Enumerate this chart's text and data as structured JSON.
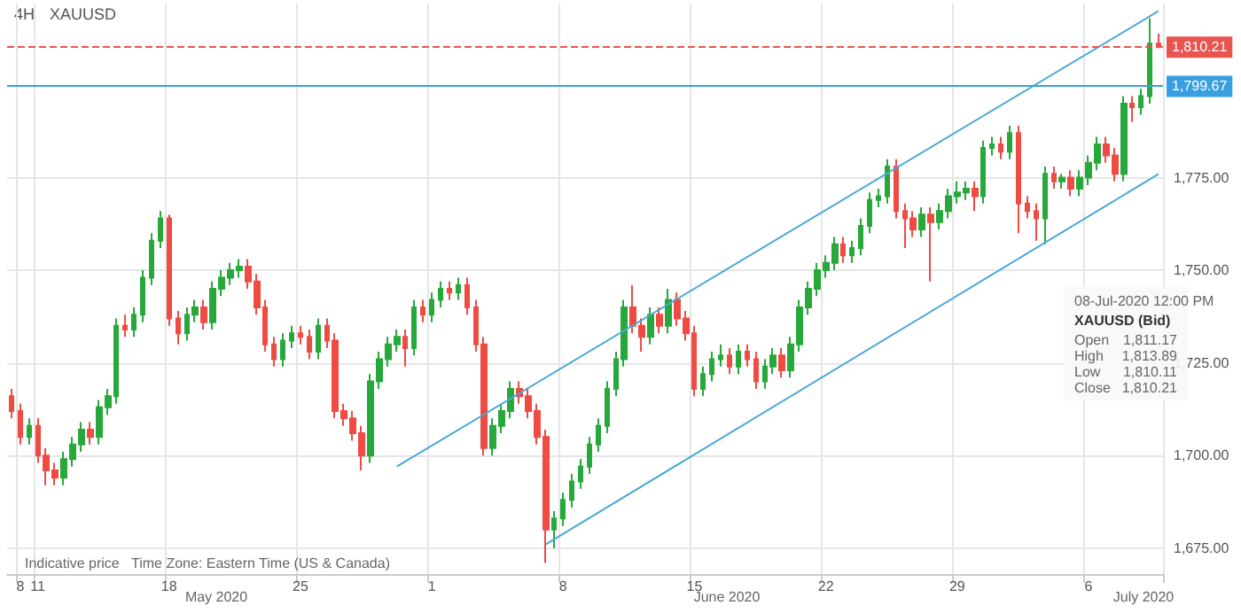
{
  "chart_data": {
    "type": "candlestick",
    "title": "4H",
    "subtitle": "XAUUSD",
    "categories": [
      null,
      "8",
      null,
      "11",
      null,
      null,
      null,
      null,
      null,
      null,
      null,
      null,
      null,
      null,
      null,
      null,
      null,
      null,
      "18",
      null,
      null,
      null,
      null,
      null,
      null,
      null,
      null,
      null,
      null,
      null,
      null,
      null,
      null,
      "25",
      null,
      null,
      null,
      null,
      null,
      null,
      null,
      null,
      null,
      null,
      null,
      null,
      null,
      null,
      "1",
      null,
      null,
      null,
      null,
      null,
      null,
      null,
      null,
      null,
      null,
      null,
      null,
      null,
      null,
      "8",
      null,
      null,
      null,
      null,
      null,
      null,
      null,
      null,
      null,
      null,
      null,
      null,
      null,
      null,
      "15",
      null,
      null,
      null,
      null,
      null,
      null,
      null,
      null,
      null,
      null,
      null,
      null,
      null,
      null,
      "22",
      null,
      null,
      null,
      null,
      null,
      null,
      null,
      null,
      null,
      null,
      null,
      null,
      null,
      null,
      "29",
      null,
      null,
      null,
      null,
      null,
      null,
      null,
      null,
      null,
      null,
      null,
      null,
      null,
      null,
      "6",
      null,
      null,
      null,
      null,
      null,
      null,
      null,
      null
    ],
    "series": [
      {
        "ohlc": [
          [
            1716,
            1718,
            1710,
            1712
          ],
          [
            1712,
            1714,
            1703,
            1705
          ],
          [
            1705,
            1710,
            1703,
            1708
          ],
          [
            1708,
            1710,
            1698,
            1700
          ],
          [
            1700,
            1702,
            1692,
            1696
          ],
          [
            1696,
            1698,
            1692,
            1694
          ],
          [
            1694,
            1701,
            1692,
            1699
          ],
          [
            1699,
            1705,
            1697,
            1703
          ],
          [
            1703,
            1709,
            1701,
            1707
          ],
          [
            1707,
            1709,
            1703,
            1705
          ],
          [
            1705,
            1715,
            1703,
            1713
          ],
          [
            1713,
            1718,
            1711,
            1716
          ],
          [
            1716,
            1737,
            1714,
            1735
          ],
          [
            1735,
            1738,
            1732,
            1734
          ],
          [
            1734,
            1740,
            1732,
            1738
          ],
          [
            1738,
            1750,
            1736,
            1748
          ],
          [
            1748,
            1760,
            1746,
            1758
          ],
          [
            1758,
            1766,
            1756,
            1764
          ],
          [
            1764,
            1765,
            1735,
            1737
          ],
          [
            1737,
            1739,
            1730,
            1733
          ],
          [
            1733,
            1740,
            1731,
            1738
          ],
          [
            1738,
            1742,
            1736,
            1740
          ],
          [
            1740,
            1742,
            1734,
            1736
          ],
          [
            1736,
            1747,
            1734,
            1745
          ],
          [
            1745,
            1750,
            1743,
            1748
          ],
          [
            1748,
            1752,
            1746,
            1750
          ],
          [
            1750,
            1753,
            1748,
            1751
          ],
          [
            1751,
            1753,
            1745,
            1747
          ],
          [
            1747,
            1749,
            1738,
            1740
          ],
          [
            1740,
            1742,
            1728,
            1730
          ],
          [
            1730,
            1732,
            1724,
            1726
          ],
          [
            1726,
            1733,
            1724,
            1731
          ],
          [
            1731,
            1735,
            1729,
            1733
          ],
          [
            1733,
            1735,
            1730,
            1732
          ],
          [
            1732,
            1734,
            1726,
            1728
          ],
          [
            1728,
            1737,
            1726,
            1735
          ],
          [
            1735,
            1737,
            1729,
            1731
          ],
          [
            1731,
            1733,
            1710,
            1712
          ],
          [
            1712,
            1714,
            1708,
            1710
          ],
          [
            1710,
            1712,
            1704,
            1706
          ],
          [
            1706,
            1708,
            1696,
            1700
          ],
          [
            1700,
            1722,
            1698,
            1720
          ],
          [
            1720,
            1728,
            1718,
            1726
          ],
          [
            1726,
            1732,
            1724,
            1730
          ],
          [
            1730,
            1734,
            1728,
            1732
          ],
          [
            1732,
            1734,
            1724,
            1729
          ],
          [
            1729,
            1742,
            1727,
            1740
          ],
          [
            1740,
            1742,
            1736,
            1738
          ],
          [
            1738,
            1744,
            1736,
            1742
          ],
          [
            1742,
            1747,
            1740,
            1745
          ],
          [
            1745,
            1747,
            1742,
            1744
          ],
          [
            1744,
            1748,
            1742,
            1746
          ],
          [
            1746,
            1748,
            1738,
            1740
          ],
          [
            1740,
            1742,
            1728,
            1730
          ],
          [
            1730,
            1732,
            1700,
            1702
          ],
          [
            1702,
            1710,
            1700,
            1708
          ],
          [
            1708,
            1714,
            1706,
            1712
          ],
          [
            1712,
            1720,
            1710,
            1718
          ],
          [
            1718,
            1720,
            1714,
            1716
          ],
          [
            1716,
            1718,
            1710,
            1712
          ],
          [
            1712,
            1714,
            1703,
            1705
          ],
          [
            1705,
            1707,
            1671,
            1680
          ],
          [
            1680,
            1685,
            1675,
            1683
          ],
          [
            1683,
            1690,
            1681,
            1688
          ],
          [
            1688,
            1695,
            1686,
            1693
          ],
          [
            1693,
            1699,
            1691,
            1697
          ],
          [
            1697,
            1705,
            1695,
            1703
          ],
          [
            1703,
            1710,
            1701,
            1708
          ],
          [
            1708,
            1720,
            1706,
            1718
          ],
          [
            1718,
            1728,
            1716,
            1726
          ],
          [
            1726,
            1742,
            1724,
            1740
          ],
          [
            1740,
            1746,
            1733,
            1735
          ],
          [
            1735,
            1737,
            1728,
            1732
          ],
          [
            1732,
            1740,
            1730,
            1738
          ],
          [
            1738,
            1740,
            1733,
            1735
          ],
          [
            1735,
            1745,
            1733,
            1742
          ],
          [
            1742,
            1744,
            1735,
            1737
          ],
          [
            1737,
            1739,
            1731,
            1733
          ],
          [
            1733,
            1735,
            1716,
            1718
          ],
          [
            1718,
            1724,
            1716,
            1722
          ],
          [
            1722,
            1728,
            1720,
            1726
          ],
          [
            1726,
            1730,
            1724,
            1727
          ],
          [
            1727,
            1729,
            1722,
            1724
          ],
          [
            1724,
            1730,
            1722,
            1728
          ],
          [
            1728,
            1730,
            1724,
            1726
          ],
          [
            1726,
            1728,
            1718,
            1720
          ],
          [
            1720,
            1726,
            1718,
            1724
          ],
          [
            1724,
            1729,
            1722,
            1727
          ],
          [
            1727,
            1729,
            1721,
            1723
          ],
          [
            1723,
            1732,
            1721,
            1730
          ],
          [
            1730,
            1742,
            1728,
            1740
          ],
          [
            1740,
            1747,
            1738,
            1745
          ],
          [
            1745,
            1752,
            1743,
            1750
          ],
          [
            1750,
            1754,
            1748,
            1752
          ],
          [
            1752,
            1759,
            1750,
            1757
          ],
          [
            1757,
            1759,
            1752,
            1754
          ],
          [
            1754,
            1758,
            1752,
            1756
          ],
          [
            1756,
            1764,
            1754,
            1762
          ],
          [
            1762,
            1771,
            1760,
            1769
          ],
          [
            1769,
            1772,
            1767,
            1770
          ],
          [
            1770,
            1780,
            1768,
            1778
          ],
          [
            1778,
            1780,
            1764,
            1766
          ],
          [
            1766,
            1768,
            1756,
            1764
          ],
          [
            1764,
            1766,
            1759,
            1761
          ],
          [
            1761,
            1767,
            1759,
            1765
          ],
          [
            1765,
            1767,
            1747,
            1763
          ],
          [
            1763,
            1768,
            1761,
            1766
          ],
          [
            1766,
            1772,
            1764,
            1770
          ],
          [
            1770,
            1774,
            1768,
            1771
          ],
          [
            1771,
            1774,
            1769,
            1772
          ],
          [
            1772,
            1774,
            1766,
            1770
          ],
          [
            1770,
            1785,
            1768,
            1783
          ],
          [
            1783,
            1786,
            1781,
            1784
          ],
          [
            1784,
            1786,
            1780,
            1782
          ],
          [
            1782,
            1789,
            1780,
            1787
          ],
          [
            1787,
            1789,
            1760,
            1768
          ],
          [
            1768,
            1770,
            1764,
            1766
          ],
          [
            1766,
            1768,
            1758,
            1764
          ],
          [
            1764,
            1778,
            1757,
            1776
          ],
          [
            1776,
            1778,
            1772,
            1774
          ],
          [
            1774,
            1776,
            1772,
            1775
          ],
          [
            1775,
            1777,
            1770,
            1772
          ],
          [
            1772,
            1777,
            1770,
            1775
          ],
          [
            1775,
            1781,
            1773,
            1779
          ],
          [
            1779,
            1786,
            1777,
            1784
          ],
          [
            1784,
            1786,
            1779,
            1781
          ],
          [
            1781,
            1783,
            1774,
            1776
          ],
          [
            1776,
            1797,
            1774,
            1795
          ],
          [
            1795,
            1797,
            1790,
            1794
          ],
          [
            1794,
            1799,
            1792,
            1797
          ],
          [
            1797,
            1818,
            1795,
            1811.17
          ],
          [
            1811.17,
            1813.89,
            1810.11,
            1810.21
          ]
        ],
        "colors": [
          "#ef4b43",
          "#ef4b43",
          "#26a83a",
          "#ef4b43",
          "#ef4b43",
          "#ef4b43",
          "#26a83a",
          "#26a83a",
          "#26a83a",
          "#ef4b43",
          "#26a83a",
          "#26a83a",
          "#26a83a",
          "#ef4b43",
          "#26a83a",
          "#26a83a",
          "#26a83a",
          "#26a83a",
          "#ef4b43",
          "#ef4b43",
          "#26a83a",
          "#26a83a",
          "#ef4b43",
          "#26a83a",
          "#26a83a",
          "#26a83a",
          "#26a83a",
          "#ef4b43",
          "#ef4b43",
          "#ef4b43",
          "#ef4b43",
          "#26a83a",
          "#26a83a",
          "#ef4b43",
          "#ef4b43",
          "#26a83a",
          "#ef4b43",
          "#ef4b43",
          "#ef4b43",
          "#ef4b43",
          "#ef4b43",
          "#26a83a",
          "#26a83a",
          "#26a83a",
          "#26a83a",
          "#ef4b43",
          "#26a83a",
          "#ef4b43",
          "#26a83a",
          "#26a83a",
          "#ef4b43",
          "#26a83a",
          "#ef4b43",
          "#ef4b43",
          "#ef4b43",
          "#26a83a",
          "#26a83a",
          "#26a83a",
          "#ef4b43",
          "#ef4b43",
          "#ef4b43",
          "#ef4b43",
          "#26a83a",
          "#26a83a",
          "#26a83a",
          "#26a83a",
          "#26a83a",
          "#26a83a",
          "#26a83a",
          "#26a83a",
          "#26a83a",
          "#ef4b43",
          "#ef4b43",
          "#26a83a",
          "#ef4b43",
          "#26a83a",
          "#ef4b43",
          "#ef4b43",
          "#ef4b43",
          "#26a83a",
          "#26a83a",
          "#26a83a",
          "#ef4b43",
          "#26a83a",
          "#ef4b43",
          "#ef4b43",
          "#26a83a",
          "#26a83a",
          "#ef4b43",
          "#26a83a",
          "#26a83a",
          "#26a83a",
          "#26a83a",
          "#26a83a",
          "#26a83a",
          "#ef4b43",
          "#26a83a",
          "#26a83a",
          "#26a83a",
          "#26a83a",
          "#26a83a",
          "#ef4b43",
          "#ef4b43",
          "#ef4b43",
          "#26a83a",
          "#ef4b43",
          "#26a83a",
          "#26a83a",
          "#26a83a",
          "#26a83a",
          "#ef4b43",
          "#26a83a",
          "#26a83a",
          "#ef4b43",
          "#26a83a",
          "#ef4b43",
          "#ef4b43",
          "#ef4b43",
          "#26a83a",
          "#ef4b43",
          "#26a83a",
          "#ef4b43",
          "#26a83a",
          "#26a83a",
          "#26a83a",
          "#ef4b43",
          "#ef4b43",
          "#26a83a",
          "#ef4b43",
          "#26a83a",
          "#26a83a",
          "#ef4b43"
        ]
      },
      {
        "type": "line",
        "color": "#4aa8d8",
        "marker": "none",
        "values": [
          null,
          null,
          null,
          null,
          null,
          null,
          null,
          null,
          null,
          null,
          null,
          null,
          null,
          null,
          null,
          null,
          null,
          null,
          null,
          null,
          null,
          null,
          null,
          null,
          null,
          null,
          null,
          null,
          null,
          null,
          null,
          null,
          null,
          null,
          null,
          null,
          null,
          null,
          null,
          null,
          null,
          null,
          null,
          null,
          1697,
          null,
          null,
          null,
          null,
          null,
          null,
          null,
          null,
          null,
          null,
          null,
          null,
          null,
          null,
          null,
          null,
          null,
          null,
          null,
          null,
          null,
          null,
          null,
          null,
          null,
          null,
          null,
          null,
          null,
          null,
          null,
          null,
          null,
          null,
          null,
          null,
          null,
          null,
          null,
          null,
          null,
          null,
          null,
          null,
          null,
          null,
          null,
          null,
          null,
          null,
          null,
          null,
          null,
          null,
          null,
          null,
          null,
          null,
          null,
          null,
          null,
          null,
          null,
          null,
          null,
          null,
          null,
          null,
          null,
          null,
          null,
          null,
          null,
          null,
          null,
          null,
          null,
          null,
          null,
          null,
          null,
          null,
          null,
          null,
          null,
          null,
          1820
        ]
      },
      {
        "type": "line",
        "color": "#4aa8d8",
        "marker": "none",
        "values": [
          null,
          null,
          null,
          null,
          null,
          null,
          null,
          null,
          null,
          null,
          null,
          null,
          null,
          null,
          null,
          null,
          null,
          null,
          null,
          null,
          null,
          null,
          null,
          null,
          null,
          null,
          null,
          null,
          null,
          null,
          null,
          null,
          null,
          null,
          null,
          null,
          null,
          null,
          null,
          null,
          null,
          null,
          null,
          null,
          null,
          null,
          null,
          null,
          null,
          null,
          null,
          null,
          null,
          null,
          null,
          null,
          null,
          null,
          null,
          null,
          null,
          1676,
          null,
          null,
          null,
          null,
          null,
          null,
          null,
          null,
          null,
          null,
          null,
          null,
          null,
          null,
          null,
          null,
          null,
          null,
          null,
          null,
          null,
          null,
          null,
          null,
          null,
          null,
          null,
          null,
          null,
          null,
          null,
          null,
          null,
          null,
          null,
          null,
          null,
          null,
          null,
          null,
          null,
          null,
          null,
          null,
          null,
          null,
          null,
          null,
          null,
          null,
          null,
          null,
          null,
          null,
          null,
          null,
          null,
          null,
          null,
          null,
          null,
          null,
          null,
          null,
          null,
          null,
          null,
          null,
          null,
          1776
        ]
      }
    ],
    "ylim": [
      1668,
      1822
    ],
    "yticks": [
      {
        "value": 1675,
        "label": "1,675.00"
      },
      {
        "value": 1700,
        "label": "1,700.00"
      },
      {
        "value": 1725,
        "label": "1,725.00"
      },
      {
        "value": 1750,
        "label": "1,750.00"
      },
      {
        "value": 1775,
        "label": "1,775.00"
      }
    ],
    "ref_lines": [
      {
        "axis": "y",
        "value": 1810.21,
        "label": "1,810.21",
        "color": "#e8554e",
        "line_style": "dashed"
      },
      {
        "axis": "y",
        "value": 1799.67,
        "label": "1,799.67",
        "color": "#3a9fe0",
        "line_style": "solid"
      }
    ],
    "grid": true,
    "annotations": [
      "Indicative price",
      "Time Zone: Eastern Time (US & Canada)",
      "May 2020",
      "June 2020",
      "July 2020",
      "08-Jul-2020 12:00 PM",
      "XAUUSD (Bid)",
      "Open",
      "1,811.17",
      "High",
      "1,813.89",
      "Low",
      "1,810.11",
      "Close",
      "1,810.21"
    ]
  }
}
